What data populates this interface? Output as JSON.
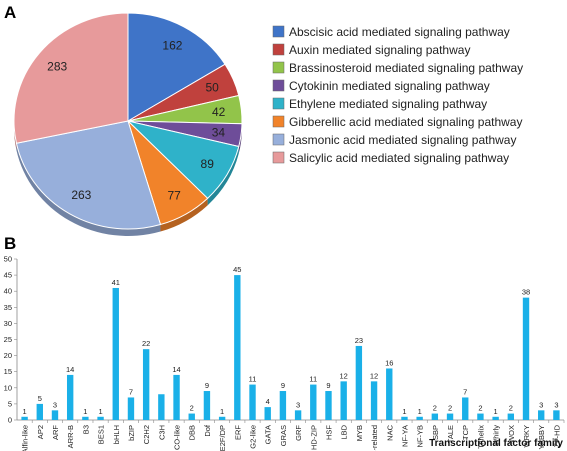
{
  "panels": {
    "a_label": "A",
    "b_label": "B"
  },
  "chart_data": [
    {
      "type": "pie",
      "panel": "A",
      "categories": [
        "Abscisic acid mediated signaling pathway",
        "Auxin mediated signaling pathway",
        "Brassinosteroid mediated signaling pathway",
        "Cytokinin mediated signaling pathway",
        "Ethylene mediated signaling pathway",
        "Gibberellic acid mediated signaling pathway",
        "Jasmonic acid mediated signaling pathway",
        "Salicylic acid mediated signaling pathway"
      ],
      "values": [
        162,
        50,
        42,
        34,
        89,
        77,
        263,
        283
      ],
      "colors": [
        "#3f74c8",
        "#c0413d",
        "#92c44a",
        "#6e4d99",
        "#2fb2c9",
        "#f1832a",
        "#97afdb",
        "#e79a9b"
      ],
      "legend_position": "right"
    },
    {
      "type": "bar",
      "panel": "B",
      "categories": [
        "Alfin-like",
        "AP2",
        "ARF",
        "ARR-B",
        "B3",
        "BES1",
        "bHLH",
        "bZIP",
        "C2H2",
        "C3H",
        "CO-like",
        "DBB",
        "Dof",
        "E2F/DP",
        "ERF",
        "G2-like",
        "GATA",
        "GRAS",
        "GRF",
        "HD-ZIP",
        "HSF",
        "LBD",
        "MYB",
        "MYB-related",
        "NAC",
        "NF-YA",
        "NF-YB",
        "SBP",
        "TALE",
        "TCP",
        "Trihelix",
        "Whirly",
        "WOX",
        "WRKY",
        "YABBY",
        "ZF-HD"
      ],
      "values": [
        1,
        5,
        3,
        14,
        1,
        1,
        41,
        7,
        22,
        8,
        14,
        2,
        9,
        1,
        45,
        11,
        4,
        9,
        3,
        11,
        9,
        12,
        23,
        12,
        16,
        1,
        1,
        2,
        2,
        7,
        2,
        1,
        2,
        38,
        3,
        3
      ],
      "value_labels": [
        "1",
        "5",
        "3",
        "14",
        "1",
        "1",
        "41",
        "7",
        "22",
        "",
        "14",
        "2",
        "9",
        "1",
        "45",
        "11",
        "4",
        "9",
        "3",
        "11",
        "9",
        "12",
        "23",
        "12",
        "16",
        "1",
        "1",
        "2",
        "2",
        "7",
        "2",
        "1",
        "2",
        "38",
        "3",
        "3"
      ],
      "xlabel": "Transcriptional factor family",
      "ylabel": "",
      "ylim": [
        0,
        50
      ],
      "yticks": [
        0,
        5,
        10,
        15,
        20,
        25,
        30,
        35,
        40,
        45,
        50
      ],
      "bar_color": "#1ab0e8",
      "grid": false
    }
  ]
}
